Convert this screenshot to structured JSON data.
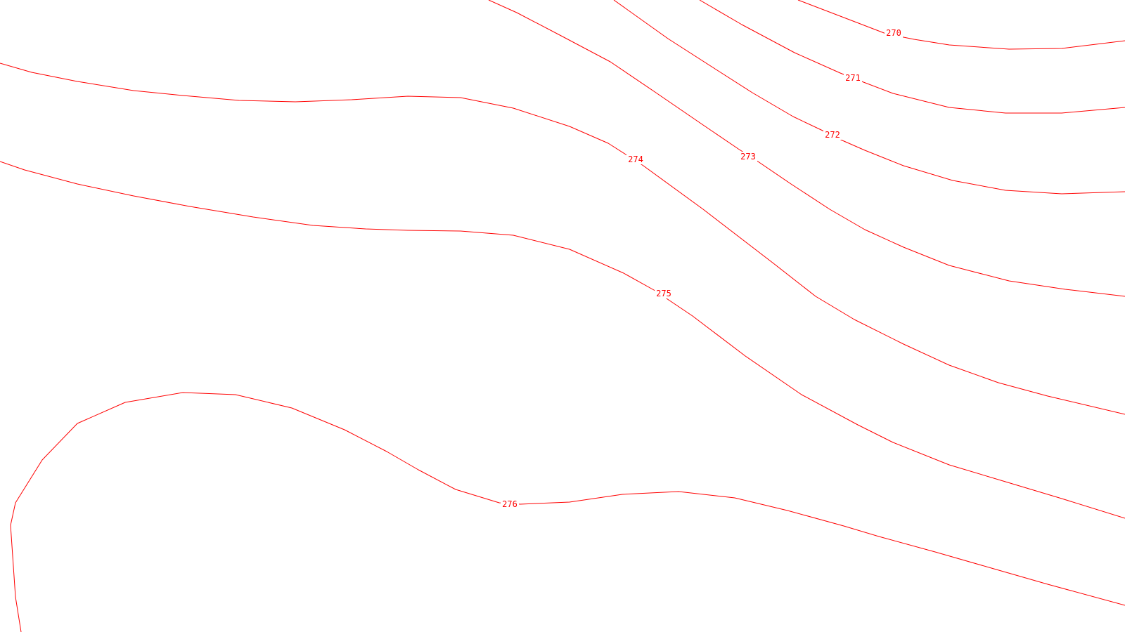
{
  "map": {
    "background_color": "#ffffff",
    "contour_color": "#ff0000",
    "contours": [
      {
        "elevation": "270"
      },
      {
        "elevation": "271"
      },
      {
        "elevation": "272"
      },
      {
        "elevation": "273"
      },
      {
        "elevation": "274"
      },
      {
        "elevation": "275"
      },
      {
        "elevation": "276"
      }
    ]
  }
}
